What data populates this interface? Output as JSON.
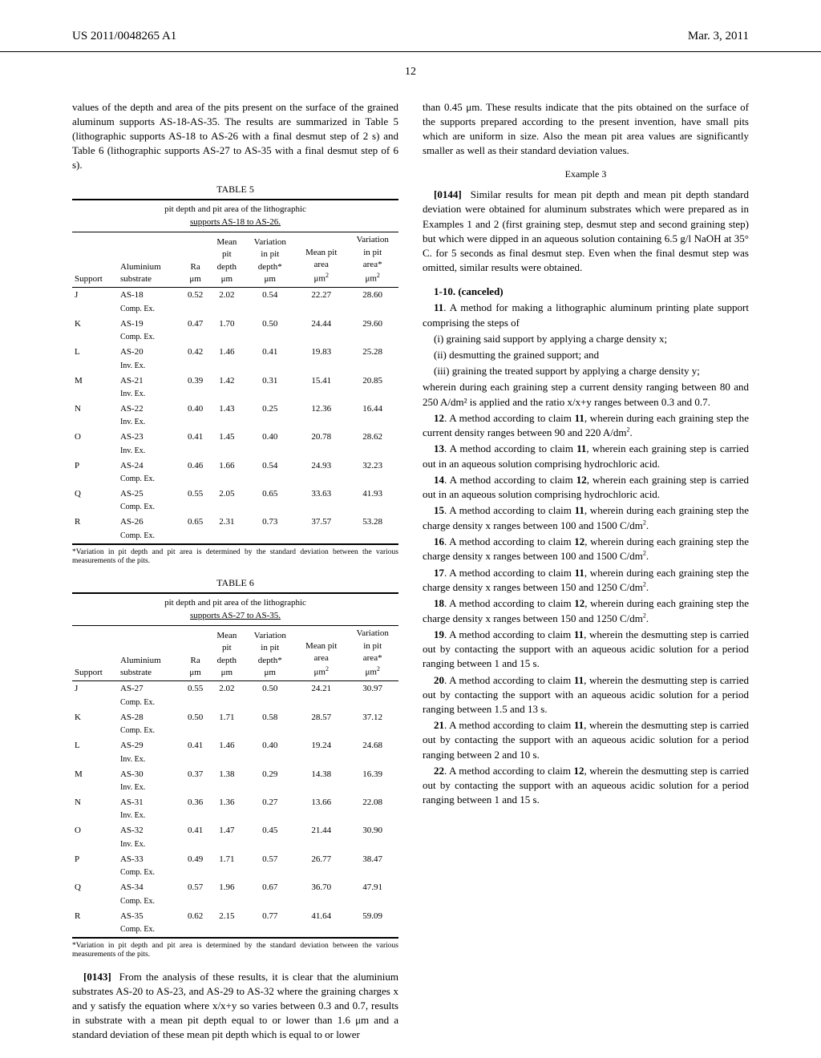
{
  "header": {
    "left": "US 2011/0048265 A1",
    "right": "Mar. 3, 2011"
  },
  "page_number": "12",
  "col1": {
    "intro": "values of the depth and area of the pits present on the surface of the grained aluminum supports AS-18-AS-35. The results are summarized in Table 5 (lithographic supports AS-18 to AS-26 with a final desmut step of 2 s) and Table 6 (lithographic supports AS-27 to AS-35 with a final desmut step of 6 s).",
    "table5": {
      "label": "TABLE 5",
      "caption": "pit depth and pit area of the lithographic",
      "caption2": "supports AS-18 to AS-26.",
      "headers": [
        "Support",
        "Aluminium substrate",
        "Ra μm",
        "Mean pit depth μm",
        "Variation in pit depth* μm",
        "Mean pit area μm²",
        "Variation in pit area* μm²"
      ],
      "rows": [
        [
          "J",
          "AS-18",
          "Comp. Ex.",
          "0.52",
          "2.02",
          "0.54",
          "22.27",
          "28.60"
        ],
        [
          "K",
          "AS-19",
          "Comp. Ex.",
          "0.47",
          "1.70",
          "0.50",
          "24.44",
          "29.60"
        ],
        [
          "L",
          "AS-20",
          "Inv. Ex.",
          "0.42",
          "1.46",
          "0.41",
          "19.83",
          "25.28"
        ],
        [
          "M",
          "AS-21",
          "Inv. Ex.",
          "0.39",
          "1.42",
          "0.31",
          "15.41",
          "20.85"
        ],
        [
          "N",
          "AS-22",
          "Inv. Ex.",
          "0.40",
          "1.43",
          "0.25",
          "12.36",
          "16.44"
        ],
        [
          "O",
          "AS-23",
          "Inv. Ex.",
          "0.41",
          "1.45",
          "0.40",
          "20.78",
          "28.62"
        ],
        [
          "P",
          "AS-24",
          "Comp. Ex.",
          "0.46",
          "1.66",
          "0.54",
          "24.93",
          "32.23"
        ],
        [
          "Q",
          "AS-25",
          "Comp. Ex.",
          "0.55",
          "2.05",
          "0.65",
          "33.63",
          "41.93"
        ],
        [
          "R",
          "AS-26",
          "Comp. Ex.",
          "0.65",
          "2.31",
          "0.73",
          "37.57",
          "53.28"
        ]
      ],
      "footnote": "*Variation in pit depth and pit area is determined by the standard deviation between the various measurements of the pits."
    },
    "table6": {
      "label": "TABLE 6",
      "caption": "pit depth and pit area of the lithographic",
      "caption2": "supports AS-27 to AS-35.",
      "rows": [
        [
          "J",
          "AS-27",
          "Comp. Ex.",
          "0.55",
          "2.02",
          "0.50",
          "24.21",
          "30.97"
        ],
        [
          "K",
          "AS-28",
          "Comp. Ex.",
          "0.50",
          "1.71",
          "0.58",
          "28.57",
          "37.12"
        ],
        [
          "L",
          "AS-29",
          "Inv. Ex.",
          "0.41",
          "1.46",
          "0.40",
          "19.24",
          "24.68"
        ],
        [
          "M",
          "AS-30",
          "Inv. Ex.",
          "0.37",
          "1.38",
          "0.29",
          "14.38",
          "16.39"
        ],
        [
          "N",
          "AS-31",
          "Inv. Ex.",
          "0.36",
          "1.36",
          "0.27",
          "13.66",
          "22.08"
        ],
        [
          "O",
          "AS-32",
          "Inv. Ex.",
          "0.41",
          "1.47",
          "0.45",
          "21.44",
          "30.90"
        ],
        [
          "P",
          "AS-33",
          "Comp. Ex.",
          "0.49",
          "1.71",
          "0.57",
          "26.77",
          "38.47"
        ],
        [
          "Q",
          "AS-34",
          "Comp. Ex.",
          "0.57",
          "1.96",
          "0.67",
          "36.70",
          "47.91"
        ],
        [
          "R",
          "AS-35",
          "Comp. Ex.",
          "0.62",
          "2.15",
          "0.77",
          "41.64",
          "59.09"
        ]
      ],
      "footnote": "*Variation in pit depth and pit area is determined by the standard deviation between the various measurements of the pits."
    },
    "para0143": "From the analysis of these results, it is clear that the aluminium substrates AS-20 to AS-23, and AS-29 to AS-32 where the graining charges x and y satisfy the equation where x/x+y so varies between 0.3 and 0.7, results in substrate with a mean pit depth equal to or lower than 1.6 μm and a standard deviation of these mean pit depth which is equal to or lower"
  },
  "col2": {
    "cont": "than 0.45 μm. These results indicate that the pits obtained on the surface of the supports prepared according to the present invention, have small pits which are uniform in size. Also the mean pit area values are significantly smaller as well as their standard deviation values.",
    "example3_title": "Example 3",
    "para0144": "Similar results for mean pit depth and mean pit depth standard deviation were obtained for aluminum substrates which were prepared as in Examples 1 and 2 (first graining step, desmut step and second graining step) but which were dipped in an aqueous solution containing 6.5 g/l NaOH at 35° C. for 5 seconds as final desmut step. Even when the final desmut step was omitted, similar results were obtained.",
    "claims": {
      "c1_10": "1-10. (canceled)",
      "c11": "11. A method for making a lithographic aluminum printing plate support comprising the steps of",
      "c11_i": "(i) graining said support by applying a charge density x;",
      "c11_ii": "(ii) desmutting the grained support; and",
      "c11_iii": "(iii) graining the treated support by applying a charge density y;",
      "c11_where": "wherein during each graining step a current density ranging between 80 and 250 A/dm² is applied and the ratio x/x+y ranges between 0.3 and 0.7.",
      "c12": "12. A method according to claim 11, wherein during each graining step the current density ranges between 90 and 220 A/dm².",
      "c13": "13. A method according to claim 11, wherein each graining step is carried out in an aqueous solution comprising hydrochloric acid.",
      "c14": "14. A method according to claim 12, wherein each graining step is carried out in an aqueous solution comprising hydrochloric acid.",
      "c15": "15. A method according to claim 11, wherein during each graining step the charge density x ranges between 100 and 1500 C/dm².",
      "c16": "16. A method according to claim 12, wherein during each graining step the charge density x ranges between 100 and 1500 C/dm².",
      "c17": "17. A method according to claim 11, wherein during each graining step the charge density x ranges between 150 and 1250 C/dm².",
      "c18": "18. A method according to claim 12, wherein during each graining step the charge density x ranges between 150 and 1250 C/dm².",
      "c19": "19. A method according to claim 11, wherein the desmutting step is carried out by contacting the support with an aqueous acidic solution for a period ranging between 1 and 15 s.",
      "c20": "20. A method according to claim 11, wherein the desmutting step is carried out by contacting the support with an aqueous acidic solution for a period ranging between 1.5 and 13 s.",
      "c21": "21. A method according to claim 11, wherein the desmutting step is carried out by contacting the support with an aqueous acidic solution for a period ranging between 2 and 10 s.",
      "c22": "22. A method according to claim 12, wherein the desmutting step is carried out by contacting the support with an aqueous acidic solution for a period ranging between 1 and 15 s."
    }
  }
}
